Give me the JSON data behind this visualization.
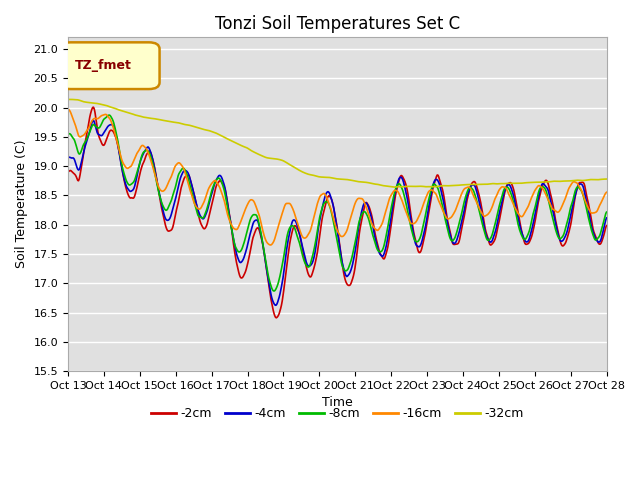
{
  "title": "Tonzi Soil Temperatures Set C",
  "xlabel": "Time",
  "ylabel": "Soil Temperature (C)",
  "ylim": [
    15.5,
    21.2
  ],
  "line_colors": [
    "#cc0000",
    "#0000cc",
    "#00bb00",
    "#ff8800",
    "#cccc00"
  ],
  "line_labels": [
    "-2cm",
    "-4cm",
    "-8cm",
    "-16cm",
    "-32cm"
  ],
  "legend_label": "TZ_fmet",
  "legend_box_facecolor": "#ffffcc",
  "legend_box_edgecolor": "#cc8800",
  "plot_bg": "#e0e0e0",
  "title_fontsize": 12,
  "label_fontsize": 9,
  "tick_fontsize": 8,
  "grid_color": "#ffffff",
  "tick_labels": [
    "Oct 13",
    "Oct 14",
    "Oct 15",
    "Oct 16",
    "Oct 17",
    "Oct 18",
    "Oct 19",
    "Oct 20",
    "Oct 21",
    "Oct 22",
    "Oct 23",
    "Oct 24",
    "Oct 25",
    "Oct 26",
    "Oct 27",
    "Oct 28"
  ]
}
